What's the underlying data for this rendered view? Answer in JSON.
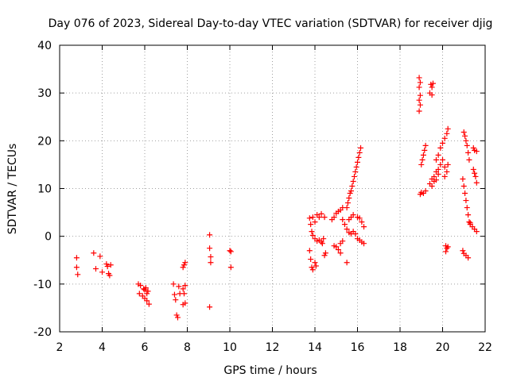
{
  "chart_data": {
    "type": "scatter",
    "title": "Day 076 of 2023, Sidereal Day-to-day VTEC variation (SDTVAR) for receiver djig",
    "xlabel": "GPS time / hours",
    "ylabel": "SDTVAR / TECUs",
    "xlim": [
      2,
      22
    ],
    "ylim": [
      -20,
      40
    ],
    "xticks": [
      2,
      4,
      6,
      8,
      10,
      12,
      14,
      16,
      18,
      20,
      22
    ],
    "yticks": [
      -20,
      -10,
      0,
      10,
      20,
      30,
      40
    ],
    "xtick_labels": [
      "2",
      "4",
      "6",
      "8",
      "10",
      "12",
      "14",
      "16",
      "18",
      "20",
      "22"
    ],
    "ytick_labels": [
      "-20",
      "-10",
      "0",
      "10",
      "20",
      "30",
      "40"
    ],
    "grid": true,
    "marker": "+",
    "series": [
      {
        "name": "SDTVAR",
        "color": "#ff0000",
        "points": [
          [
            2.8,
            -4.5
          ],
          [
            2.8,
            -6.5
          ],
          [
            2.85,
            -8.0
          ],
          [
            3.6,
            -3.5
          ],
          [
            3.7,
            -6.8
          ],
          [
            3.9,
            -4.2
          ],
          [
            4.0,
            -7.5
          ],
          [
            4.2,
            -5.8
          ],
          [
            4.25,
            -6.3
          ],
          [
            4.3,
            -7.8
          ],
          [
            4.35,
            -8.2
          ],
          [
            4.4,
            -6.0
          ],
          [
            5.7,
            -10.0
          ],
          [
            5.75,
            -12.0
          ],
          [
            5.8,
            -10.3
          ],
          [
            5.9,
            -12.5
          ],
          [
            5.95,
            -11.0
          ],
          [
            6.0,
            -13.0
          ],
          [
            6.05,
            -10.8
          ],
          [
            6.1,
            -13.5
          ],
          [
            6.15,
            -11.5
          ],
          [
            6.2,
            -14.2
          ],
          [
            6.1,
            -12.0
          ],
          [
            6.0,
            -11.2
          ],
          [
            7.35,
            -10.0
          ],
          [
            7.4,
            -12.2
          ],
          [
            7.45,
            -13.3
          ],
          [
            7.5,
            -16.5
          ],
          [
            7.55,
            -17.0
          ],
          [
            7.6,
            -10.5
          ],
          [
            7.65,
            -12.0
          ],
          [
            7.8,
            -6.5
          ],
          [
            7.85,
            -6.0
          ],
          [
            7.9,
            -5.5
          ],
          [
            7.8,
            -11.0
          ],
          [
            7.85,
            -12.0
          ],
          [
            7.9,
            -14.0
          ],
          [
            7.8,
            -14.3
          ],
          [
            7.9,
            -10.3
          ],
          [
            9.05,
            0.3
          ],
          [
            9.05,
            -2.5
          ],
          [
            9.1,
            -4.3
          ],
          [
            9.1,
            -5.5
          ],
          [
            9.05,
            -14.8
          ],
          [
            10.0,
            -3.0
          ],
          [
            10.05,
            -3.2
          ],
          [
            10.05,
            -6.5
          ],
          [
            13.75,
            -3.0
          ],
          [
            13.8,
            -4.8
          ],
          [
            13.85,
            -6.5
          ],
          [
            13.9,
            -7.0
          ],
          [
            14.0,
            -5.5
          ],
          [
            14.05,
            -6.2
          ],
          [
            13.75,
            3.8
          ],
          [
            13.8,
            2.5
          ],
          [
            13.85,
            1.0
          ],
          [
            13.9,
            4.0
          ],
          [
            14.0,
            3.0
          ],
          [
            14.1,
            4.5
          ],
          [
            14.2,
            4.0
          ],
          [
            14.3,
            4.7
          ],
          [
            14.35,
            -1.5
          ],
          [
            14.4,
            -0.5
          ],
          [
            14.45,
            4.0
          ],
          [
            14.45,
            -4.0
          ],
          [
            14.5,
            -3.5
          ],
          [
            13.9,
            0.2
          ],
          [
            14.0,
            -0.5
          ],
          [
            14.1,
            -1.0
          ],
          [
            14.2,
            -0.8
          ],
          [
            14.3,
            -1.2
          ],
          [
            14.8,
            3.5
          ],
          [
            14.9,
            4.0
          ],
          [
            15.0,
            4.8
          ],
          [
            15.1,
            5.2
          ],
          [
            15.2,
            5.5
          ],
          [
            15.3,
            6.0
          ],
          [
            14.9,
            -2.0
          ],
          [
            15.0,
            -2.2
          ],
          [
            15.1,
            -2.8
          ],
          [
            15.2,
            -3.5
          ],
          [
            15.3,
            -1.0
          ],
          [
            15.2,
            -1.5
          ],
          [
            15.3,
            3.5
          ],
          [
            15.4,
            2.5
          ],
          [
            15.5,
            1.5
          ],
          [
            15.6,
            0.8
          ],
          [
            15.7,
            0.5
          ],
          [
            15.5,
            -5.5
          ],
          [
            15.6,
            3.5
          ],
          [
            15.7,
            4.0
          ],
          [
            15.8,
            4.5
          ],
          [
            16.0,
            4.0
          ],
          [
            16.1,
            3.8
          ],
          [
            16.2,
            3.0
          ],
          [
            16.3,
            2.0
          ],
          [
            15.8,
            1.0
          ],
          [
            15.9,
            0.5
          ],
          [
            16.0,
            -0.5
          ],
          [
            16.1,
            -0.8
          ],
          [
            16.2,
            -1.2
          ],
          [
            16.3,
            -1.5
          ],
          [
            15.5,
            6.0
          ],
          [
            15.55,
            7.0
          ],
          [
            15.6,
            8.0
          ],
          [
            15.65,
            9.0
          ],
          [
            15.7,
            9.5
          ],
          [
            15.75,
            10.5
          ],
          [
            15.8,
            11.5
          ],
          [
            15.85,
            12.5
          ],
          [
            15.9,
            13.5
          ],
          [
            15.95,
            14.5
          ],
          [
            16.0,
            15.5
          ],
          [
            16.05,
            16.5
          ],
          [
            16.1,
            17.5
          ],
          [
            16.15,
            18.5
          ],
          [
            18.9,
            33.2
          ],
          [
            18.95,
            32.2
          ],
          [
            18.9,
            31.2
          ],
          [
            18.95,
            29.5
          ],
          [
            18.9,
            28.5
          ],
          [
            18.95,
            27.5
          ],
          [
            18.9,
            26.2
          ],
          [
            19.45,
            31.8
          ],
          [
            19.5,
            31.2
          ],
          [
            19.55,
            32.0
          ],
          [
            19.4,
            30.0
          ],
          [
            19.5,
            29.6
          ],
          [
            19.0,
            15.0
          ],
          [
            19.05,
            16.0
          ],
          [
            19.1,
            17.0
          ],
          [
            19.15,
            18.0
          ],
          [
            19.2,
            19.0
          ],
          [
            18.95,
            8.8
          ],
          [
            19.0,
            9.2
          ],
          [
            19.1,
            9.0
          ],
          [
            19.2,
            9.5
          ],
          [
            19.4,
            11.0
          ],
          [
            19.5,
            12.0
          ],
          [
            19.6,
            12.5
          ],
          [
            19.7,
            13.5
          ],
          [
            19.6,
            11.5
          ],
          [
            19.5,
            10.5
          ],
          [
            19.7,
            11.8
          ],
          [
            19.8,
            13.0
          ],
          [
            19.7,
            16.0
          ],
          [
            19.8,
            17.0
          ],
          [
            19.9,
            18.5
          ],
          [
            20.0,
            19.5
          ],
          [
            20.1,
            20.5
          ],
          [
            20.2,
            21.5
          ],
          [
            20.25,
            22.5
          ],
          [
            19.8,
            14.0
          ],
          [
            19.9,
            15.0
          ],
          [
            20.0,
            16.0
          ],
          [
            20.1,
            14.5
          ],
          [
            20.2,
            13.5
          ],
          [
            20.25,
            15.0
          ],
          [
            20.1,
            12.5
          ],
          [
            20.15,
            -2.0
          ],
          [
            20.2,
            -2.5
          ],
          [
            20.15,
            -3.2
          ],
          [
            20.25,
            -2.2
          ],
          [
            21.0,
            21.8
          ],
          [
            21.05,
            21.0
          ],
          [
            21.1,
            20.0
          ],
          [
            21.15,
            19.0
          ],
          [
            21.2,
            17.5
          ],
          [
            21.25,
            16.0
          ],
          [
            20.95,
            12.0
          ],
          [
            21.0,
            10.5
          ],
          [
            21.05,
            9.0
          ],
          [
            21.1,
            7.5
          ],
          [
            21.15,
            6.0
          ],
          [
            21.2,
            4.5
          ],
          [
            21.25,
            3.0
          ],
          [
            21.3,
            2.5
          ],
          [
            20.95,
            -3.0
          ],
          [
            21.0,
            -3.6
          ],
          [
            21.1,
            -4.0
          ],
          [
            21.2,
            -4.5
          ],
          [
            21.45,
            18.5
          ],
          [
            21.5,
            18.0
          ],
          [
            21.6,
            17.8
          ],
          [
            21.45,
            14.0
          ],
          [
            21.5,
            13.2
          ],
          [
            21.55,
            12.5
          ],
          [
            21.6,
            11.2
          ],
          [
            21.3,
            2.8
          ],
          [
            21.4,
            2.0
          ],
          [
            21.5,
            1.5
          ],
          [
            21.6,
            1.0
          ]
        ]
      }
    ]
  }
}
